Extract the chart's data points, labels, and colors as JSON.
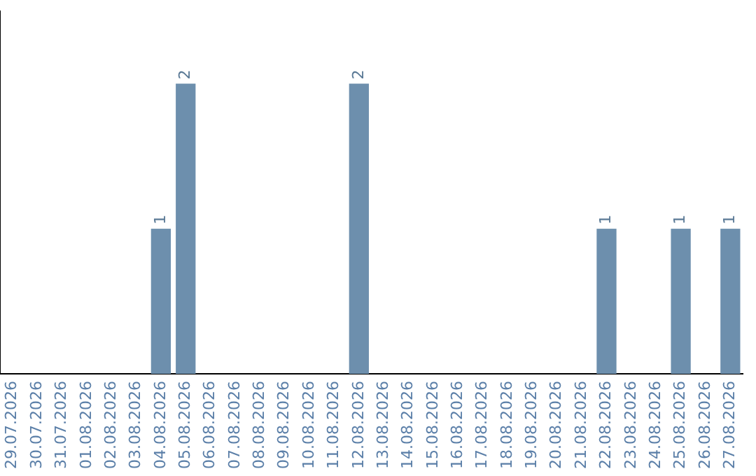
{
  "chart_data": {
    "type": "bar",
    "categories": [
      "29.07.2026",
      "30.07.2026",
      "31.07.2026",
      "01.08.2026",
      "02.08.2026",
      "03.08.2026",
      "04.08.2026",
      "05.08.2026",
      "06.08.2026",
      "07.08.2026",
      "08.08.2026",
      "09.08.2026",
      "10.08.2026",
      "11.08.2026",
      "12.08.2026",
      "13.08.2026",
      "14.08.2026",
      "15.08.2026",
      "16.08.2026",
      "17.08.2026",
      "18.08.2026",
      "19.08.2026",
      "20.08.2026",
      "21.08.2026",
      "22.08.2026",
      "23.08.2026",
      "24.08.2026",
      "25.08.2026",
      "26.08.2026",
      "27.08.2026"
    ],
    "values": [
      0,
      0,
      0,
      0,
      0,
      0,
      1,
      2,
      0,
      0,
      0,
      0,
      0,
      0,
      2,
      0,
      0,
      0,
      0,
      0,
      0,
      0,
      0,
      0,
      1,
      0,
      0,
      1,
      0,
      1
    ],
    "value_labels": [
      null,
      null,
      null,
      null,
      null,
      null,
      "1",
      "2",
      null,
      null,
      null,
      null,
      null,
      null,
      "2",
      null,
      null,
      null,
      null,
      null,
      null,
      null,
      null,
      null,
      "1",
      null,
      null,
      "1",
      null,
      "1"
    ],
    "color": "#6d8fad",
    "grid": false,
    "legend": false,
    "tick_labels": "x"
  }
}
